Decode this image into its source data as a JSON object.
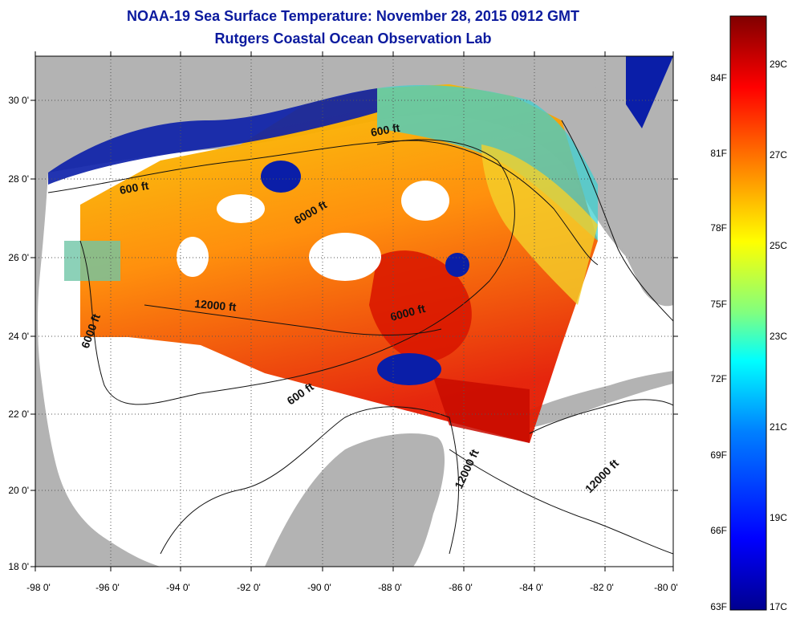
{
  "header": {
    "title": "NOAA-19 Sea Surface Temperature:  November 28, 2015 0912 GMT",
    "subtitle": "Rutgers Coastal Ocean Observation Lab"
  },
  "map": {
    "lat_ticks": [
      "30 0'",
      "28 0'",
      "26 0'",
      "24 0'",
      "22 0'",
      "20 0'",
      "18 0'"
    ],
    "lon_ticks": [
      "-98 0'",
      "-96 0'",
      "-94 0'",
      "-92 0'",
      "-90 0'",
      "-88 0'",
      "-86 0'",
      "-84 0'",
      "-82 0'",
      "-80 0'"
    ],
    "contour_labels": [
      "600 ft",
      "600 ft",
      "6000 ft",
      "12000 ft",
      "6000 ft",
      "6000 ft",
      "600 ft",
      "12000 ft",
      "12000 ft"
    ],
    "land_color": "#b3b3b3",
    "nodata_color": "#ffffff"
  },
  "colorbar": {
    "f_labels": [
      "84F",
      "81F",
      "78F",
      "75F",
      "72F",
      "69F",
      "66F",
      "63F"
    ],
    "c_labels": [
      "29C",
      "27C",
      "25C",
      "23C",
      "21C",
      "19C",
      "17C"
    ],
    "colors": [
      "#00008f",
      "#0000ff",
      "#0080ff",
      "#00ffff",
      "#80ff80",
      "#ffff00",
      "#ff8000",
      "#ff0000",
      "#800000"
    ]
  }
}
